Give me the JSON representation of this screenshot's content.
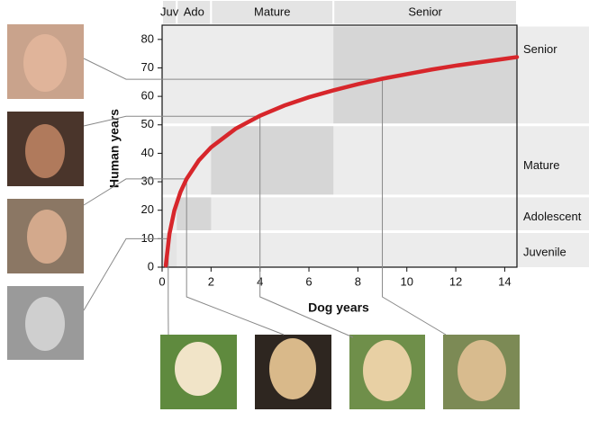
{
  "chart_data": {
    "type": "line",
    "xlabel": "Dog years",
    "ylabel": "Human years",
    "x": [
      0.15,
      0.3,
      0.5,
      0.75,
      1,
      1.5,
      2,
      3,
      4,
      5,
      6,
      7,
      8,
      9,
      10,
      11,
      12,
      13,
      14,
      14.5
    ],
    "series": [
      {
        "color": "#d7262b",
        "values": [
          0.6,
          11.7,
          19.9,
          26.4,
          31,
          37.5,
          42.1,
          48.6,
          53.2,
          56.8,
          59.7,
          62.1,
          64.3,
          66.2,
          67.8,
          69.4,
          70.8,
          72.0,
          73.2,
          73.8
        ]
      }
    ],
    "xlim": [
      0,
      14.5
    ],
    "xticks": [
      0,
      2,
      4,
      6,
      8,
      10,
      12,
      14
    ],
    "ylim": [
      0,
      85
    ],
    "yticks": [
      0,
      10,
      20,
      30,
      40,
      50,
      60,
      70,
      80
    ],
    "dog_stages": [
      {
        "name": "Juv",
        "range": [
          0,
          0.6
        ]
      },
      {
        "name": "Ado",
        "range": [
          0.6,
          2
        ]
      },
      {
        "name": "Mature",
        "range": [
          2,
          7
        ]
      },
      {
        "name": "Senior",
        "range": [
          7,
          14.5
        ]
      }
    ],
    "human_stages": [
      {
        "name": "Juvenile",
        "range": [
          0,
          12.5
        ]
      },
      {
        "name": "Adolescent",
        "range": [
          12.5,
          25
        ]
      },
      {
        "name": "Mature",
        "range": [
          25,
          50
        ]
      },
      {
        "name": "Senior",
        "range": [
          50,
          85
        ]
      }
    ],
    "examples": [
      {
        "dog": 0.25,
        "human": 10
      },
      {
        "dog": 1,
        "human": 31
      },
      {
        "dog": 4,
        "human": 53
      },
      {
        "dog": 9,
        "human": 66
      }
    ]
  }
}
